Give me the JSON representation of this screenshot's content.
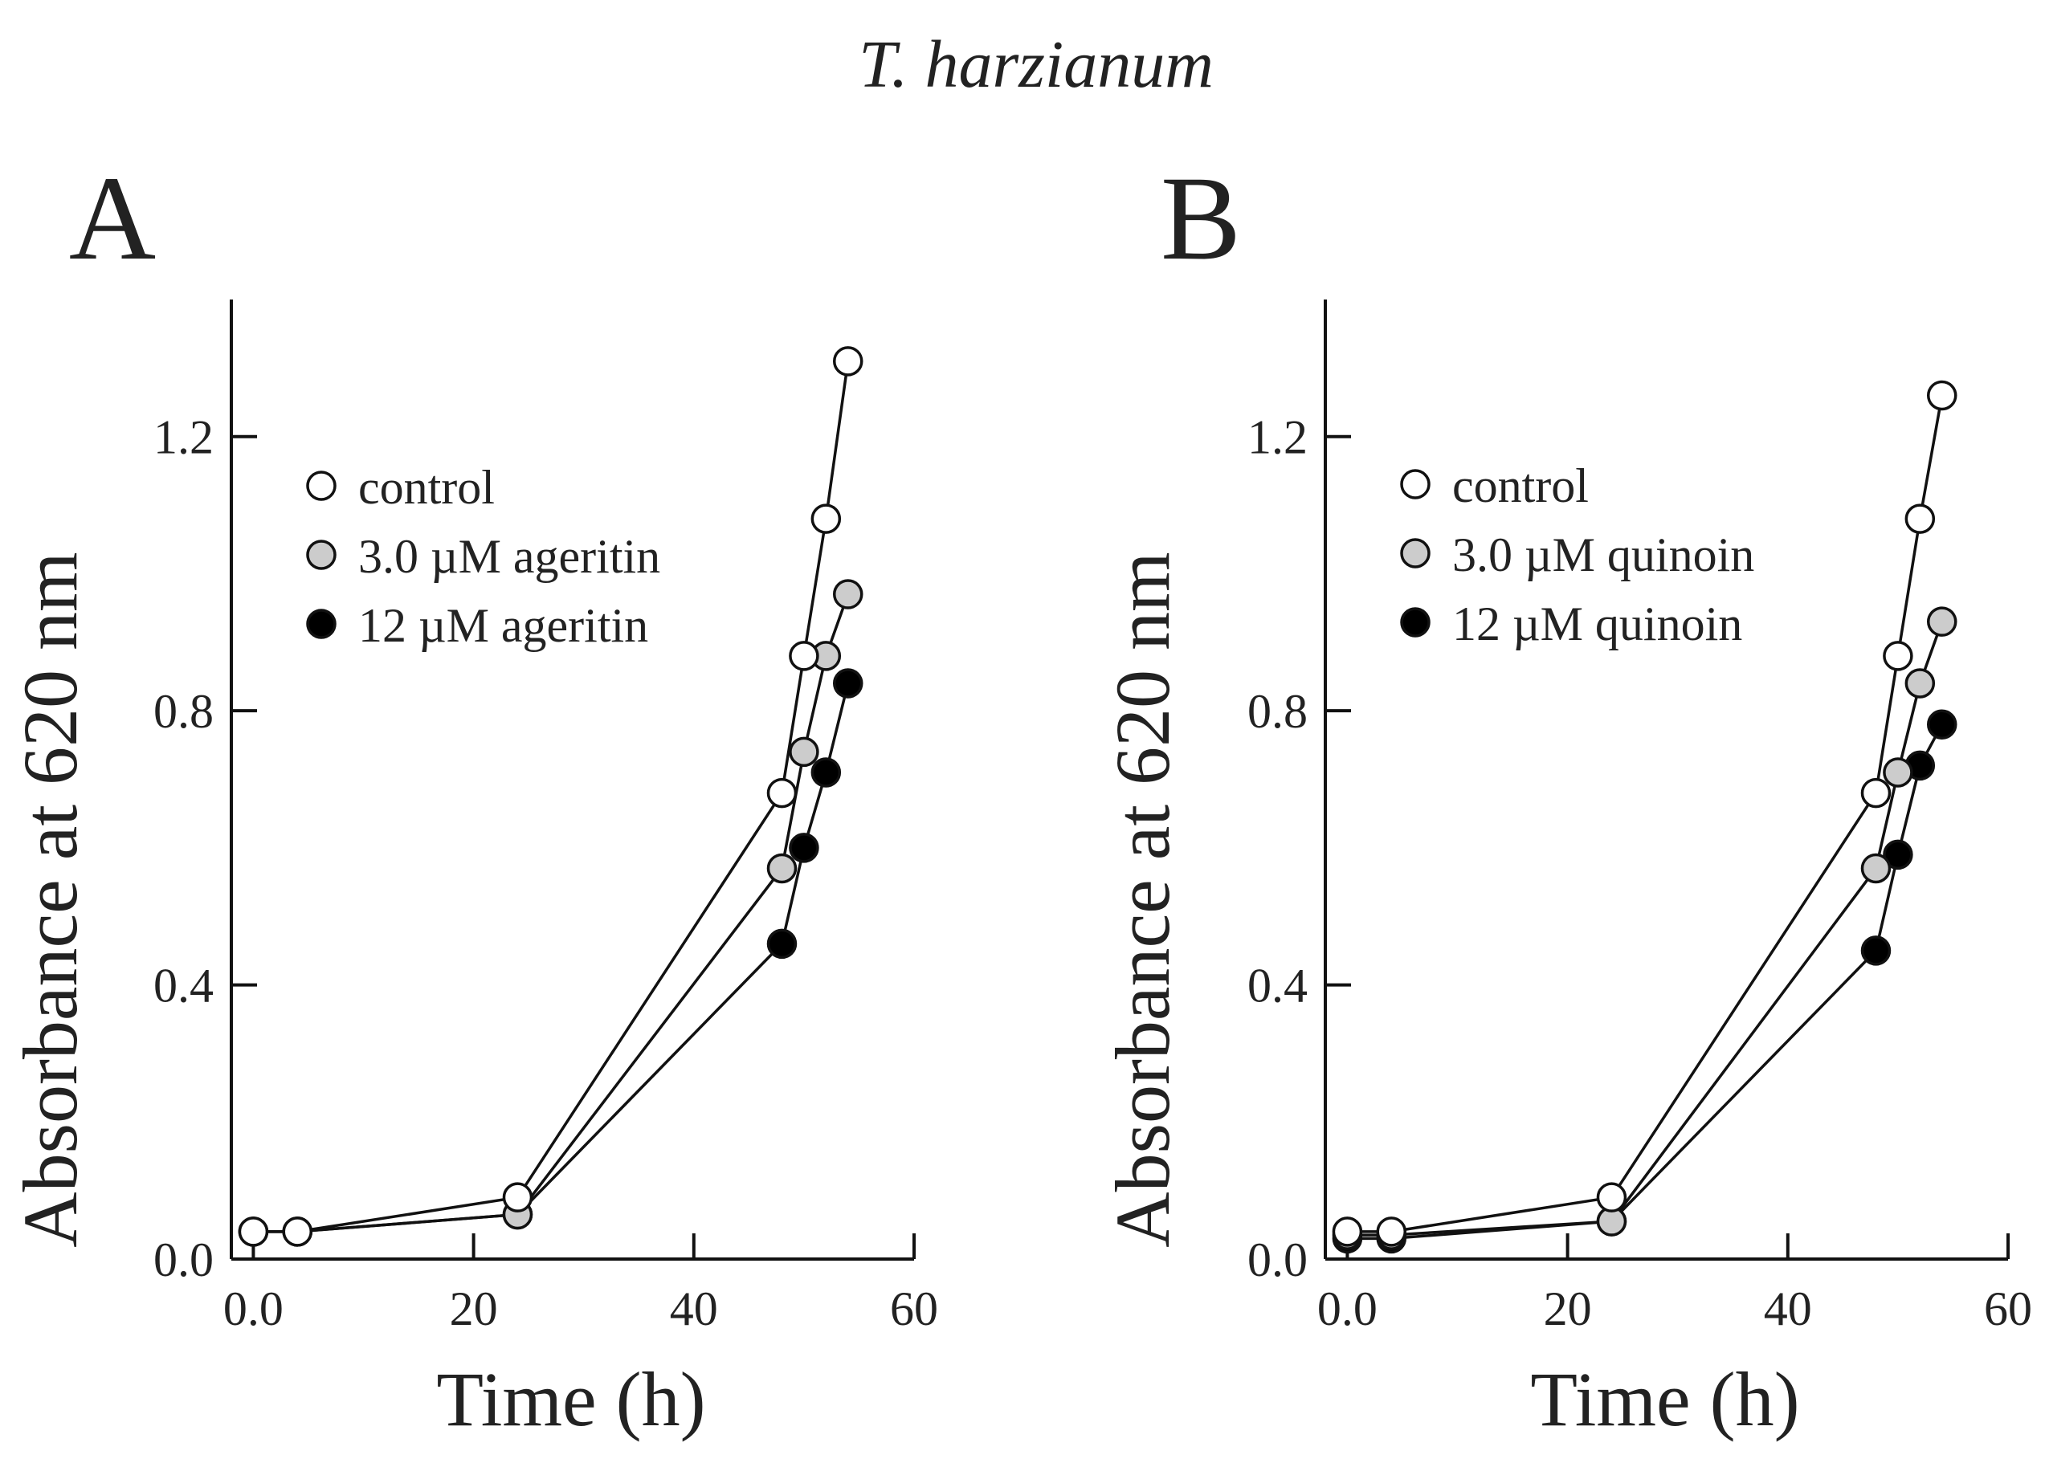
{
  "figure": {
    "suptitle": "T. harzianum"
  },
  "chart_data": [
    {
      "type": "line",
      "panel_label": "A",
      "xlabel": "Time (h)",
      "ylabel": "Absorbance at 620 nm",
      "xlim": [
        -2,
        60
      ],
      "ylim": [
        0,
        1.4
      ],
      "xticks": [
        0,
        20,
        40,
        60
      ],
      "xtick_labels": [
        "0.0",
        "20",
        "40",
        "60"
      ],
      "yticks": [
        0,
        0.4,
        0.8,
        1.2
      ],
      "ytick_labels": [
        "0.0",
        "0.4",
        "0.8",
        "1.2"
      ],
      "legend_position": "upper-left",
      "series": [
        {
          "name": "control",
          "marker_fill": "#ffffff",
          "x": [
            0,
            4,
            24,
            48,
            50,
            52,
            54
          ],
          "y": [
            0.04,
            0.04,
            0.09,
            0.68,
            0.88,
            1.08,
            1.31
          ]
        },
        {
          "name": "3.0 µM ageritin",
          "marker_fill": "#cccccc",
          "x": [
            0,
            4,
            24,
            48,
            50,
            52,
            54
          ],
          "y": [
            0.04,
            0.04,
            0.065,
            0.57,
            0.74,
            0.88,
            0.97
          ]
        },
        {
          "name": "12 µM ageritin",
          "marker_fill": "#000000",
          "x": [
            0,
            4,
            24,
            48,
            50,
            52,
            54
          ],
          "y": [
            0.04,
            0.04,
            0.065,
            0.46,
            0.6,
            0.71,
            0.84
          ]
        }
      ]
    },
    {
      "type": "line",
      "panel_label": "B",
      "xlabel": "Time (h)",
      "ylabel": "Absorbance at 620 nm",
      "xlim": [
        -2,
        60
      ],
      "ylim": [
        0,
        1.4
      ],
      "xticks": [
        0,
        20,
        40,
        60
      ],
      "xtick_labels": [
        "0.0",
        "20",
        "40",
        "60"
      ],
      "yticks": [
        0,
        0.4,
        0.8,
        1.2
      ],
      "ytick_labels": [
        "0.0",
        "0.4",
        "0.8",
        "1.2"
      ],
      "legend_position": "upper-left",
      "series": [
        {
          "name": "control",
          "marker_fill": "#ffffff",
          "x": [
            0,
            4,
            24,
            48,
            50,
            52,
            54
          ],
          "y": [
            0.04,
            0.04,
            0.09,
            0.68,
            0.88,
            1.08,
            1.26
          ]
        },
        {
          "name": "3.0 µM quinoin",
          "marker_fill": "#cccccc",
          "x": [
            0,
            4,
            24,
            48,
            50,
            52,
            54
          ],
          "y": [
            0.035,
            0.035,
            0.055,
            0.57,
            0.71,
            0.84,
            0.93
          ]
        },
        {
          "name": "12 µM quinoin",
          "marker_fill": "#000000",
          "x": [
            0,
            4,
            24,
            48,
            50,
            52,
            54
          ],
          "y": [
            0.03,
            0.03,
            0.055,
            0.45,
            0.59,
            0.72,
            0.78
          ]
        }
      ]
    }
  ]
}
